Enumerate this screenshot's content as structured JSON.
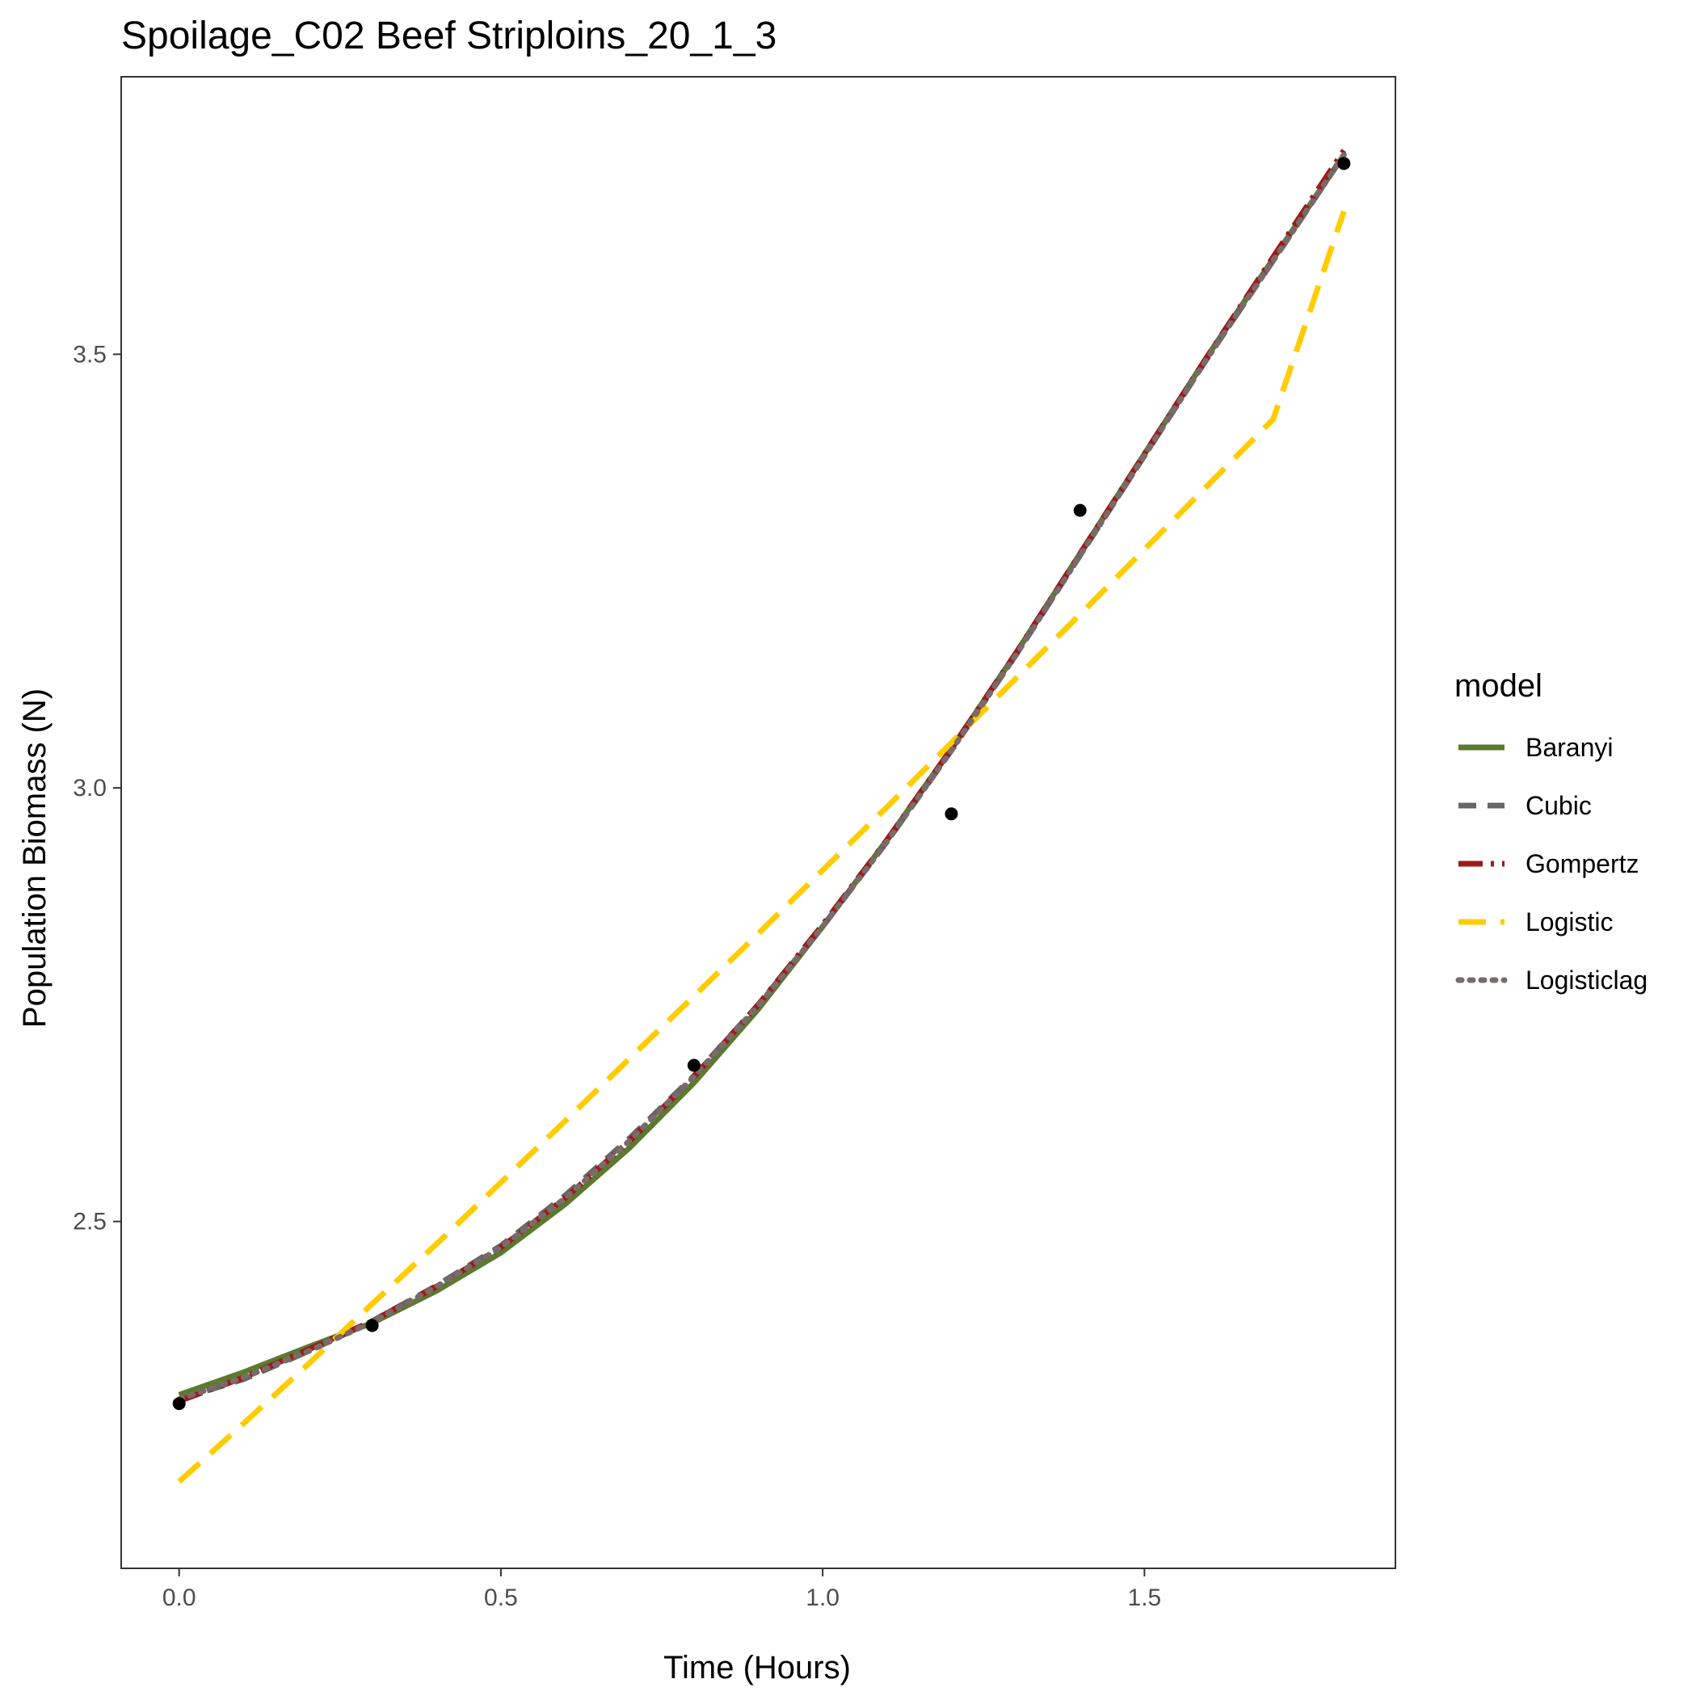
{
  "chart_data": {
    "type": "line",
    "title": "Spoilage_C02 Beef Striploins_20_1_3",
    "xlabel": "Time (Hours)",
    "ylabel": "Population Biomass (N)",
    "xlim": [
      -0.09,
      1.89
    ],
    "ylim": [
      2.1,
      3.82
    ],
    "x_ticks": [
      0.0,
      0.5,
      1.0,
      1.5
    ],
    "x_tick_labels": [
      "0.0",
      "0.5",
      "1.0",
      "1.5"
    ],
    "y_ticks": [
      2.5,
      3.0,
      3.5
    ],
    "y_tick_labels": [
      "2.5",
      "3.0",
      "3.5"
    ],
    "grid": false,
    "legend": {
      "title": "model",
      "position": "right"
    },
    "points": {
      "x": [
        0.0,
        0.3,
        0.8,
        1.2,
        1.4,
        1.81
      ],
      "y": [
        2.29,
        2.38,
        2.68,
        2.97,
        3.32,
        3.72
      ]
    },
    "series": [
      {
        "name": "Baranyi",
        "color": "#5b7a2e",
        "dash": "solid",
        "x": [
          0.0,
          0.1,
          0.2,
          0.3,
          0.4,
          0.5,
          0.6,
          0.7,
          0.8,
          0.9,
          1.0,
          1.1,
          1.2,
          1.3,
          1.4,
          1.5,
          1.6,
          1.7,
          1.81
        ],
        "y": [
          2.3,
          2.326,
          2.355,
          2.383,
          2.42,
          2.464,
          2.52,
          2.585,
          2.66,
          2.745,
          2.84,
          2.94,
          3.045,
          3.155,
          3.27,
          3.385,
          3.5,
          3.61,
          3.73
        ]
      },
      {
        "name": "Cubic",
        "color": "#666666",
        "dash": "dashed",
        "x": [
          0.0,
          0.1,
          0.2,
          0.3,
          0.4,
          0.5,
          0.6,
          0.7,
          0.8,
          0.9,
          1.0,
          1.1,
          1.2,
          1.3,
          1.4,
          1.5,
          1.6,
          1.7,
          1.81
        ],
        "y": [
          2.295,
          2.318,
          2.35,
          2.385,
          2.426,
          2.472,
          2.53,
          2.596,
          2.668,
          2.75,
          2.84,
          2.938,
          3.043,
          3.153,
          3.268,
          3.383,
          3.498,
          3.608,
          3.73
        ]
      },
      {
        "name": "Gompertz",
        "color": "#9e1a1a",
        "dash": "dashdot",
        "x": [
          0.0,
          0.1,
          0.2,
          0.3,
          0.4,
          0.5,
          0.6,
          0.7,
          0.8,
          0.9,
          1.0,
          1.1,
          1.2,
          1.3,
          1.4,
          1.5,
          1.6,
          1.7,
          1.81
        ],
        "y": [
          2.293,
          2.32,
          2.352,
          2.385,
          2.425,
          2.47,
          2.527,
          2.593,
          2.667,
          2.75,
          2.842,
          2.94,
          3.045,
          3.155,
          3.27,
          3.385,
          3.5,
          3.612,
          3.735
        ]
      },
      {
        "name": "Logistic",
        "color": "#ffcc00",
        "dash": "longdash",
        "x": [
          0.0,
          0.1,
          0.2,
          0.3,
          0.4,
          0.5,
          0.6,
          0.7,
          0.8,
          0.9,
          1.0,
          1.1,
          1.2,
          1.3,
          1.4,
          1.5,
          1.6,
          1.7,
          1.81
        ],
        "y": [
          2.2,
          2.267,
          2.335,
          2.405,
          2.474,
          2.545,
          2.616,
          2.688,
          2.76,
          2.832,
          2.905,
          2.978,
          3.052,
          3.126,
          3.2,
          3.275,
          3.35,
          3.425,
          3.665
        ]
      },
      {
        "name": "Logisticlag",
        "color": "#7a6a6a",
        "dash": "dotted",
        "x": [
          0.0,
          0.1,
          0.2,
          0.3,
          0.4,
          0.5,
          0.6,
          0.7,
          0.8,
          0.9,
          1.0,
          1.1,
          1.2,
          1.3,
          1.4,
          1.5,
          1.6,
          1.7,
          1.81
        ],
        "y": [
          2.295,
          2.32,
          2.35,
          2.384,
          2.425,
          2.47,
          2.527,
          2.593,
          2.667,
          2.749,
          2.84,
          2.938,
          3.043,
          3.153,
          3.268,
          3.383,
          3.498,
          3.608,
          3.73
        ]
      }
    ]
  }
}
